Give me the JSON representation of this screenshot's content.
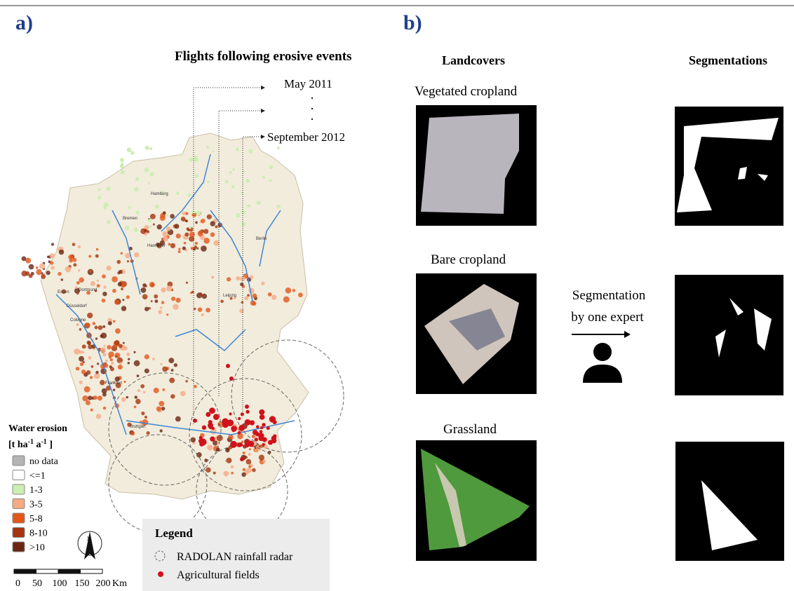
{
  "panel_a": {
    "label": "a)",
    "title": "Flights following erosive events",
    "flights": [
      "May 2011",
      "September 2012"
    ],
    "cities": [
      "Hamburg",
      "Bremen",
      "Hannover",
      "Berlin",
      "Essen",
      "Dortmund",
      "Düsseldorf",
      "Cologne",
      "Leipzig",
      "Frankfurt",
      "Stuttgart"
    ],
    "erosion_legend": {
      "title": "Water erosion",
      "unit_parts": [
        "[t ha",
        "-1",
        " a",
        "-1",
        " ]"
      ],
      "items": [
        {
          "label": "no data",
          "color": "#b4b4b4"
        },
        {
          "label": "<=1",
          "color": "#ffffff"
        },
        {
          "label": "1-3",
          "color": "#cdeeb4"
        },
        {
          "label": "3-5",
          "color": "#f5aa84"
        },
        {
          "label": "5-8",
          "color": "#e2561c"
        },
        {
          "label": "8-10",
          "color": "#a4340e"
        },
        {
          "label": ">10",
          "color": "#6a2612"
        }
      ]
    },
    "north": "N",
    "scale": {
      "ticks": [
        "0",
        "50",
        "100",
        "150",
        "200"
      ],
      "unit": "Km"
    },
    "legend": {
      "title": "Legend",
      "items": [
        "RADOLAN rainfall radar",
        "Agricultural fields"
      ]
    }
  },
  "panel_b": {
    "label": "b)",
    "columns": [
      "Landcovers",
      "Segmentations"
    ],
    "landcovers": [
      "Vegetated cropland",
      "Bare cropland",
      "Grassland"
    ],
    "process": [
      "Segmentation",
      "by one expert"
    ]
  }
}
